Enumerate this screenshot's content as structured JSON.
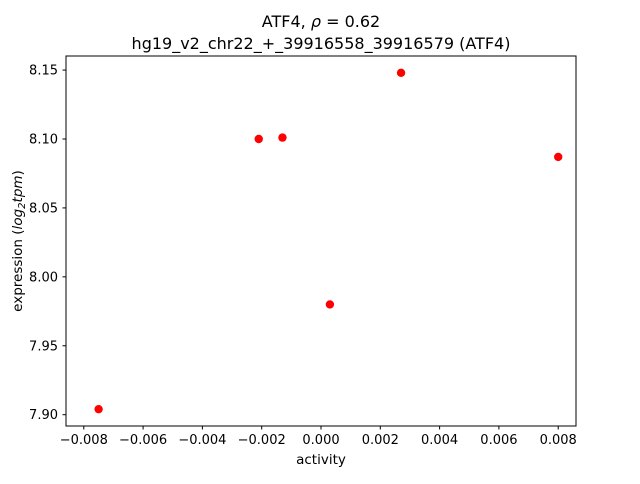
{
  "figure": {
    "bg_color": "#ffffff",
    "spine_color": "#000000"
  },
  "chart_data": {
    "type": "scatter",
    "title_lines": [
      {
        "parts": [
          {
            "text": "ATF4, ",
            "italic": false
          },
          {
            "text": "ρ",
            "italic": true
          },
          {
            "text": " = 0.62",
            "italic": false
          }
        ]
      },
      {
        "parts": [
          {
            "text": "hg19_v2_chr22_+_39916558_39916579 (ATF4)",
            "italic": false
          }
        ]
      }
    ],
    "xlabel": "activity",
    "ylabel_parts": [
      {
        "text": "expression (",
        "italic": false,
        "sub": false
      },
      {
        "text": "log",
        "italic": true,
        "sub": false
      },
      {
        "text": "2",
        "italic": true,
        "sub": true
      },
      {
        "text": "tpm",
        "italic": true,
        "sub": false
      },
      {
        "text": ")",
        "italic": false,
        "sub": false
      }
    ],
    "xlim": [
      -0.0086,
      0.0086
    ],
    "ylim": [
      7.8918,
      8.1602
    ],
    "xtick_values": [
      -0.008,
      -0.006,
      -0.004,
      -0.002,
      0.0,
      0.002,
      0.004,
      0.006,
      0.008
    ],
    "xtick_labels": [
      "−0.008",
      "−0.006",
      "−0.004",
      "−0.002",
      "0.000",
      "0.002",
      "0.004",
      "0.006",
      "0.008"
    ],
    "ytick_values": [
      7.9,
      7.95,
      8.0,
      8.05,
      8.1,
      8.15
    ],
    "ytick_labels": [
      "7.90",
      "7.95",
      "8.00",
      "8.05",
      "8.10",
      "8.15"
    ],
    "marker_color": "#ff0000",
    "marker_radius": 4.2,
    "grid": false,
    "points": [
      {
        "x": -0.0075,
        "y": 7.904
      },
      {
        "x": -0.0021,
        "y": 8.1
      },
      {
        "x": -0.0013,
        "y": 8.101
      },
      {
        "x": 0.0003,
        "y": 7.98
      },
      {
        "x": 0.0027,
        "y": 8.148
      },
      {
        "x": 0.008,
        "y": 8.087
      }
    ]
  }
}
